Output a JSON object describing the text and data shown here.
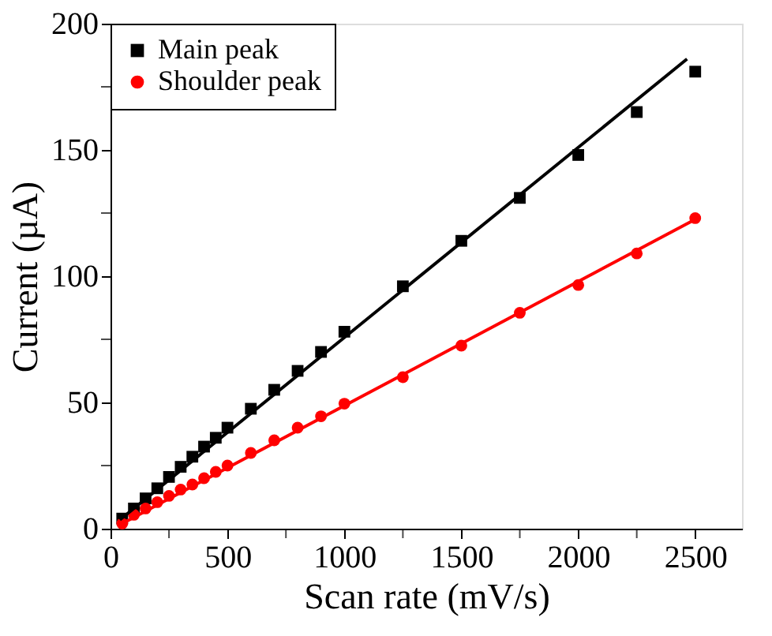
{
  "chart_data": {
    "type": "scatter",
    "xlabel": "Scan rate (mV/s)",
    "ylabel": "Current (µA)",
    "xlim": [
      0,
      2700
    ],
    "ylim": [
      0,
      200
    ],
    "xticks": [
      0,
      {
        "value": 250,
        "label": null
      },
      500,
      {
        "value": 750,
        "label": null
      },
      1000,
      {
        "value": 1250,
        "label": null
      },
      1500,
      {
        "value": 1750,
        "label": null
      },
      2000,
      {
        "value": 2250,
        "label": null
      },
      2500
    ],
    "yticks": [
      0,
      {
        "value": 25,
        "label": null
      },
      50,
      {
        "value": 75,
        "label": null
      },
      100,
      {
        "value": 125,
        "label": null
      },
      150,
      {
        "value": 175,
        "label": null
      },
      200
    ],
    "legend": "top left",
    "grid": false,
    "series": [
      {
        "name": "Main peak",
        "marker": "square",
        "color": "#000000",
        "x": [
          50,
          100,
          150,
          200,
          250,
          300,
          350,
          400,
          450,
          500,
          600,
          700,
          800,
          900,
          1000,
          1250,
          1500,
          1750,
          2000,
          2250,
          2500
        ],
        "values": [
          4,
          8,
          12,
          16,
          20.5,
          24.5,
          28.5,
          32.5,
          36,
          40,
          47.5,
          55,
          62.5,
          70,
          78,
          96,
          114,
          131,
          148,
          165,
          181
        ]
      },
      {
        "name": "Shoulder peak",
        "marker": "circle",
        "color": "#ff0000",
        "x": [
          50,
          100,
          150,
          200,
          250,
          300,
          350,
          400,
          450,
          500,
          600,
          700,
          800,
          900,
          1000,
          1250,
          1500,
          1750,
          2000,
          2250,
          2500
        ],
        "values": [
          2,
          5.5,
          8,
          10.5,
          13,
          15.5,
          17.5,
          20,
          22.5,
          25,
          30,
          35,
          40,
          44.5,
          49.5,
          60,
          72.5,
          85.5,
          96.5,
          109,
          123
        ]
      },
      {
        "type": "line",
        "marker": "none",
        "line_style": "solid",
        "color": "#000000",
        "x": [
          40,
          2465
        ],
        "values": [
          3.5,
          186
        ]
      },
      {
        "type": "line",
        "marker": "none",
        "line_style": "solid",
        "color": "#ff0000",
        "x": [
          50,
          2500
        ],
        "values": [
          2,
          122.5
        ]
      }
    ]
  }
}
